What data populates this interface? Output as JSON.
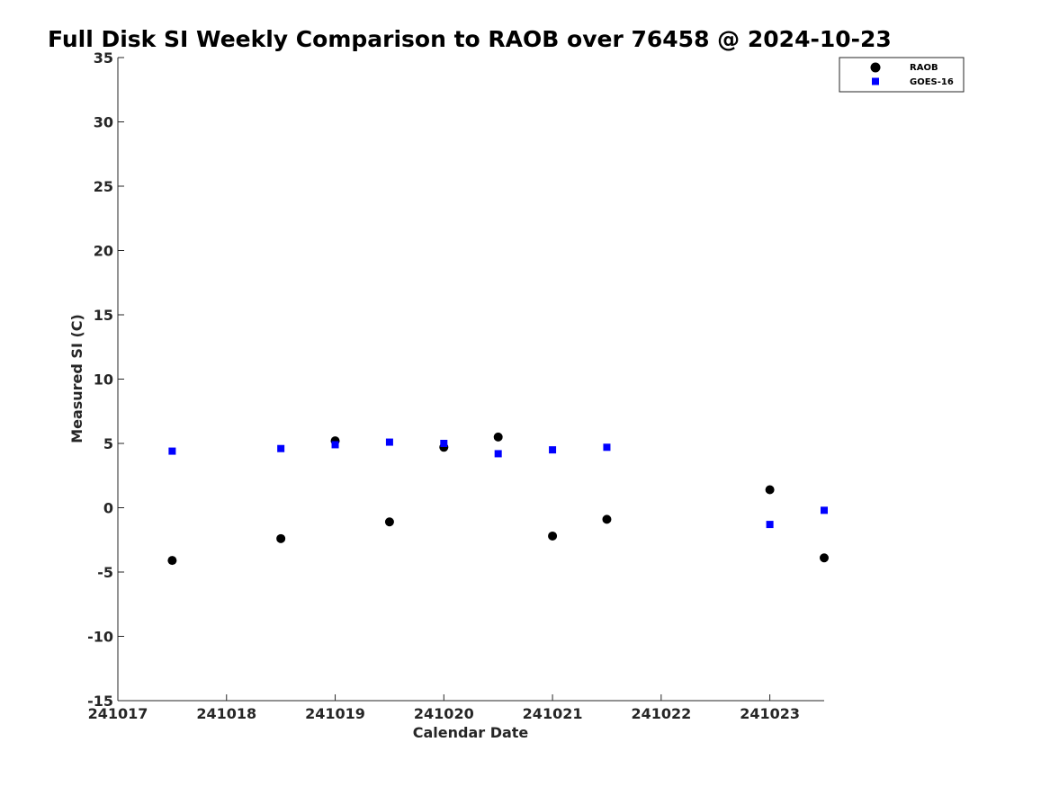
{
  "chart_data": {
    "type": "scatter",
    "title": "Full Disk SI Weekly Comparison to RAOB over 76458 @ 2024-10-23",
    "xlabel": "Calendar Date",
    "ylabel": "Measured SI (C)",
    "x_tick_labels": [
      "241017",
      "241018",
      "241019",
      "241020",
      "241021",
      "241022",
      "241023"
    ],
    "x_tick_values": [
      0,
      1,
      2,
      3,
      4,
      5,
      6
    ],
    "xlim": [
      0,
      6.5
    ],
    "ylim": [
      -15,
      35
    ],
    "y_tick_values": [
      -15,
      -10,
      -5,
      0,
      5,
      10,
      15,
      20,
      25,
      30,
      35
    ],
    "y_tick_labels": [
      "-15",
      "-10",
      "-5",
      "0",
      "5",
      "10",
      "15",
      "20",
      "25",
      "30",
      "35"
    ],
    "grid": false,
    "legend_position": "top-right",
    "series": [
      {
        "name": "RAOB",
        "marker": "circle",
        "color": "#000000",
        "points": [
          {
            "x": 0.5,
            "y": -4.1
          },
          {
            "x": 1.5,
            "y": -2.4
          },
          {
            "x": 2.0,
            "y": 5.2
          },
          {
            "x": 2.5,
            "y": -1.1
          },
          {
            "x": 3.0,
            "y": 4.7
          },
          {
            "x": 3.5,
            "y": 5.5
          },
          {
            "x": 4.0,
            "y": -2.2
          },
          {
            "x": 4.5,
            "y": -0.9
          },
          {
            "x": 6.0,
            "y": 1.4
          },
          {
            "x": 6.5,
            "y": -3.9
          }
        ]
      },
      {
        "name": "GOES-16",
        "marker": "square",
        "color": "#0000ff",
        "points": [
          {
            "x": 0.5,
            "y": 4.4
          },
          {
            "x": 1.5,
            "y": 4.6
          },
          {
            "x": 2.0,
            "y": 4.9
          },
          {
            "x": 2.5,
            "y": 5.1
          },
          {
            "x": 3.0,
            "y": 5.0
          },
          {
            "x": 3.5,
            "y": 4.2
          },
          {
            "x": 4.0,
            "y": 4.5
          },
          {
            "x": 4.5,
            "y": 4.7
          },
          {
            "x": 6.0,
            "y": -1.3
          },
          {
            "x": 6.5,
            "y": -0.2
          }
        ]
      }
    ]
  }
}
